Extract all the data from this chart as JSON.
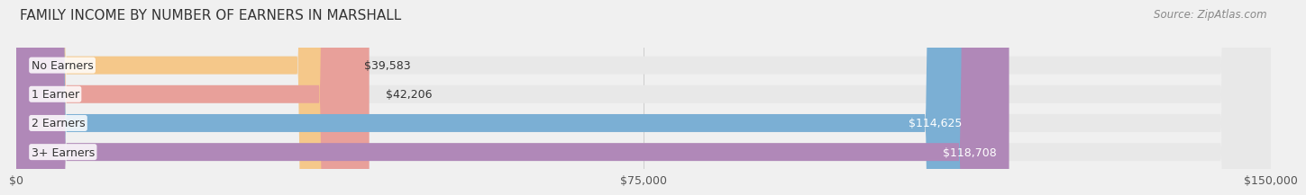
{
  "title": "FAMILY INCOME BY NUMBER OF EARNERS IN MARSHALL",
  "source": "Source: ZipAtlas.com",
  "categories": [
    "No Earners",
    "1 Earner",
    "2 Earners",
    "3+ Earners"
  ],
  "values": [
    39583,
    42206,
    114625,
    118708
  ],
  "bar_colors": [
    "#f5c88a",
    "#e8a09a",
    "#7bafd4",
    "#b088b8"
  ],
  "label_colors": [
    "#555555",
    "#555555",
    "#ffffff",
    "#ffffff"
  ],
  "value_labels": [
    "$39,583",
    "$42,206",
    "$114,625",
    "$118,708"
  ],
  "xlim": [
    0,
    150000
  ],
  "xticks": [
    0,
    75000,
    150000
  ],
  "xtick_labels": [
    "$0",
    "$75,000",
    "$150,000"
  ],
  "background_color": "#f0f0f0",
  "bar_background_color": "#e8e8e8",
  "title_fontsize": 11,
  "source_fontsize": 8.5,
  "label_fontsize": 9,
  "value_fontsize": 9,
  "tick_fontsize": 9,
  "bar_height": 0.62,
  "fig_width": 14.06,
  "fig_height": 2.33
}
